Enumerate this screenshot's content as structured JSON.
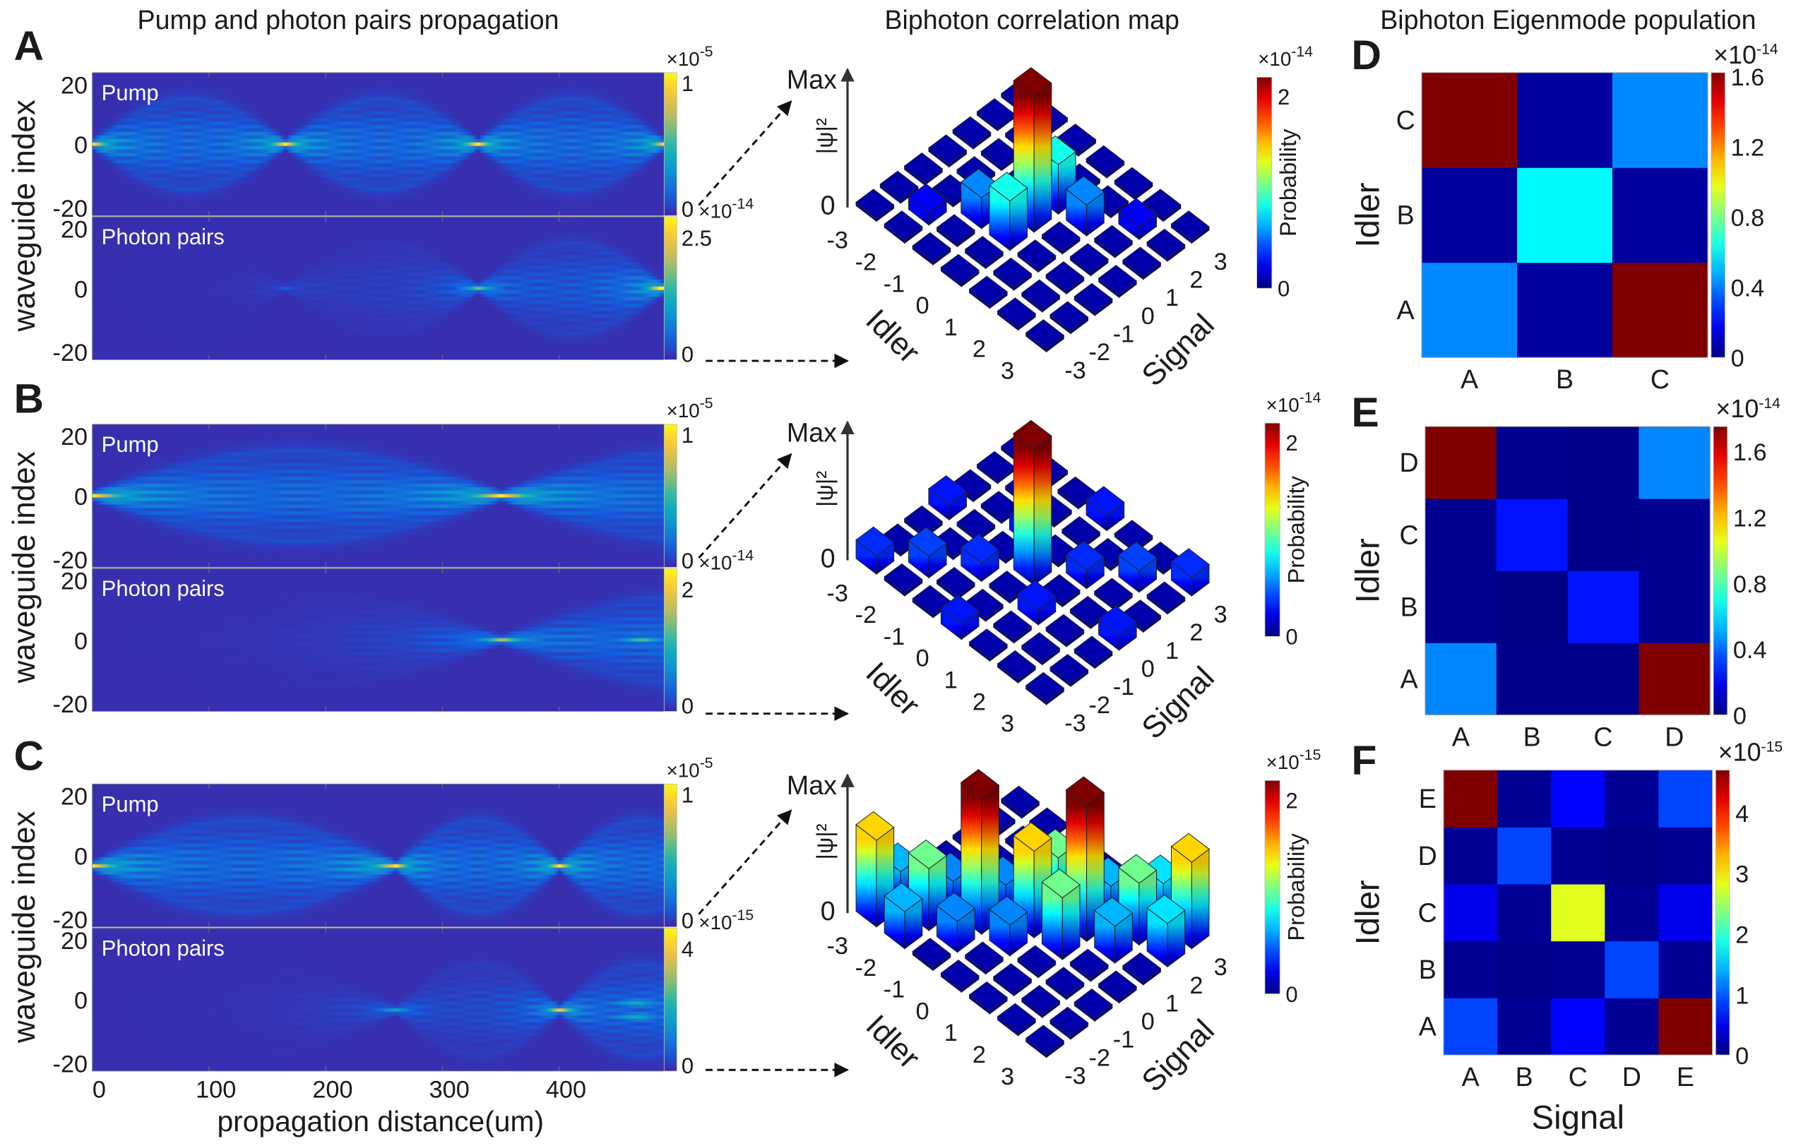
{
  "column_titles": {
    "propagation": "Pump and photon pairs propagation",
    "correlation": "Biphoton correlation map",
    "eigenmode": "Biphoton Eigenmode population"
  },
  "panel_letters": [
    "A",
    "B",
    "C",
    "D",
    "E",
    "F"
  ],
  "colors": {
    "background": "#ffffff",
    "text": "#1a1a1a",
    "arrow": "#111111"
  },
  "chart_data": [
    {
      "type": "heatmap",
      "panel": "A",
      "colormap": "parula",
      "ylabel": "waveguide index",
      "ylim": [
        -20,
        20
      ],
      "yticks": [
        "20",
        "0",
        "-20"
      ],
      "xlim": [
        0,
        490
      ],
      "subplots": [
        {
          "label": "Pump",
          "colorbar": {
            "mult": "×10",
            "exp": "-5",
            "range": [
              0,
              1
            ],
            "ticks": [
              "1",
              "0"
            ]
          },
          "bright_spots": [
            {
              "distance_um": 0,
              "waveguide": 0
            },
            {
              "distance_um": 165,
              "waveguide": 0
            },
            {
              "distance_um": 330,
              "waveguide": 0
            },
            {
              "distance_um": 490,
              "waveguide": 0
            }
          ]
        },
        {
          "label": "Photon pairs",
          "colorbar": {
            "mult": "×10",
            "exp": "-14",
            "range": [
              0,
              2.5
            ],
            "ticks": [
              "2.5",
              "0"
            ]
          },
          "bright_spots": [
            {
              "distance_um": 330,
              "waveguide": 0
            },
            {
              "distance_um": 490,
              "waveguide": 0
            }
          ]
        }
      ]
    },
    {
      "type": "heatmap",
      "panel": "B",
      "colormap": "parula",
      "ylabel": "waveguide index",
      "ylim": [
        -20,
        20
      ],
      "yticks": [
        "20",
        "0",
        "-20"
      ],
      "xlim": [
        0,
        490
      ],
      "subplots": [
        {
          "label": "Pump",
          "colorbar": {
            "mult": "×10",
            "exp": "-5",
            "range": [
              0,
              1
            ],
            "ticks": [
              "1",
              "0"
            ]
          },
          "bright_spots": [
            {
              "distance_um": 0,
              "waveguide": 0
            },
            {
              "distance_um": 350,
              "waveguide": 0
            }
          ]
        },
        {
          "label": "Photon pairs",
          "colorbar": {
            "mult": "×10",
            "exp": "-14",
            "range": [
              0,
              2
            ],
            "ticks": [
              "2",
              "0"
            ]
          },
          "bright_spots": [
            {
              "distance_um": 350,
              "waveguide": 0
            },
            {
              "distance_um": 470,
              "waveguide": 0
            }
          ]
        }
      ]
    },
    {
      "type": "heatmap",
      "panel": "C",
      "colormap": "parula",
      "ylabel": "waveguide index",
      "ylim": [
        -20,
        20
      ],
      "yticks": [
        "20",
        "0",
        "-20"
      ],
      "xlabel": "propagation distance(um)",
      "xlim": [
        0,
        490
      ],
      "xticks": [
        "0",
        "100",
        "200",
        "300",
        "400"
      ],
      "xtick_values": [
        0,
        100,
        200,
        300,
        400
      ],
      "subplots": [
        {
          "label": "Pump",
          "colorbar": {
            "mult": "×10",
            "exp": "-5",
            "range": [
              0,
              1
            ],
            "ticks": [
              "1",
              "0"
            ]
          },
          "bright_spots": [
            {
              "distance_um": 0,
              "waveguide": -3
            },
            {
              "distance_um": 260,
              "waveguide": -3
            },
            {
              "distance_um": 400,
              "waveguide": -3
            }
          ]
        },
        {
          "label": "Photon pairs",
          "colorbar": {
            "mult": "×10",
            "exp": "-15",
            "range": [
              0,
              4
            ],
            "ticks": [
              "4",
              "0"
            ]
          },
          "bright_spots": [
            {
              "distance_um": 260,
              "waveguide": -3
            },
            {
              "distance_um": 400,
              "waveguide": -3
            },
            {
              "distance_um": 465,
              "waveguide": -1
            },
            {
              "distance_um": 465,
              "waveguide": -5
            }
          ]
        }
      ]
    },
    {
      "type": "bar3d",
      "panel": "A",
      "colormap": "jet",
      "ztop": "Max",
      "zbottom": "0",
      "zlabel": "|ψ|²",
      "xlabel": "Idler",
      "ylabel": "Signal",
      "idler_ticks": [
        "-3",
        "-2",
        "-1",
        "0",
        "1",
        "2",
        "3"
      ],
      "signal_ticks": [
        "-3",
        "-2",
        "-1",
        "0",
        "1",
        "2",
        "3"
      ],
      "colorbar": {
        "label": "Probability",
        "mult": "×10",
        "exp": "-14",
        "range": [
          0,
          2.2
        ],
        "ticks": [
          "2",
          "0"
        ],
        "tick_values": [
          2,
          0
        ]
      },
      "values": [
        [
          0.03,
          0.03,
          0.03,
          0.03,
          0.03,
          0.03,
          0.03
        ],
        [
          0.03,
          0.2,
          0.03,
          0.03,
          0.03,
          0.03,
          0.03
        ],
        [
          0.03,
          0.03,
          0.5,
          0.03,
          0.03,
          0.03,
          0.03
        ],
        [
          0.03,
          0.03,
          0.8,
          2.2,
          0.8,
          0.03,
          0.03
        ],
        [
          0.03,
          0.03,
          0.03,
          0.03,
          0.5,
          0.03,
          0.03
        ],
        [
          0.03,
          0.03,
          0.03,
          0.03,
          0.03,
          0.2,
          0.03
        ],
        [
          0.03,
          0.03,
          0.03,
          0.03,
          0.03,
          0.03,
          0.03
        ]
      ]
    },
    {
      "type": "bar3d",
      "panel": "B",
      "colormap": "jet",
      "ztop": "Max",
      "zbottom": "0",
      "zlabel": "|ψ|²",
      "xlabel": "Idler",
      "ylabel": "Signal",
      "idler_ticks": [
        "-3",
        "-2",
        "-1",
        "0",
        "1",
        "2",
        "3"
      ],
      "signal_ticks": [
        "-3",
        "-2",
        "-1",
        "0",
        "1",
        "2",
        "3"
      ],
      "colorbar": {
        "label": "Probability",
        "mult": "×10",
        "exp": "-14",
        "range": [
          0,
          2.2
        ],
        "ticks": [
          "2",
          "0"
        ],
        "tick_values": [
          2,
          0
        ]
      },
      "values": [
        [
          0.3,
          0.03,
          0.03,
          0.25,
          0.03,
          0.03,
          0.03
        ],
        [
          0.03,
          0.35,
          0.03,
          0.03,
          0.03,
          0.03,
          0.03
        ],
        [
          0.03,
          0.03,
          0.3,
          0.03,
          0.25,
          0.03,
          0.03
        ],
        [
          0.25,
          0.03,
          0.03,
          2.2,
          0.03,
          0.03,
          0.25
        ],
        [
          0.03,
          0.03,
          0.25,
          0.03,
          0.3,
          0.03,
          0.03
        ],
        [
          0.03,
          0.03,
          0.03,
          0.03,
          0.03,
          0.35,
          0.03
        ],
        [
          0.03,
          0.03,
          0.03,
          0.25,
          0.03,
          0.03,
          0.3
        ]
      ]
    },
    {
      "type": "bar3d",
      "panel": "C",
      "colormap": "jet",
      "ztop": "Max",
      "zbottom": "0",
      "zlabel": "|ψ|²",
      "xlabel": "Idler",
      "ylabel": "Signal",
      "idler_ticks": [
        "-3",
        "-2",
        "-1",
        "0",
        "1",
        "2",
        "3"
      ],
      "signal_ticks": [
        "-3",
        "-2",
        "-1",
        "0",
        "1",
        "2",
        "3"
      ],
      "colorbar": {
        "label": "Probability",
        "mult": "×10",
        "exp": "-15",
        "range": [
          0,
          2.2
        ],
        "ticks": [
          "2",
          "0"
        ],
        "tick_values": [
          2,
          0
        ]
      },
      "values": [
        [
          1.4,
          0.6,
          0.03,
          0.03,
          0.03,
          0.03,
          0.03
        ],
        [
          0.6,
          1.0,
          0.5,
          0.03,
          0.03,
          0.03,
          0.03
        ],
        [
          0.03,
          0.5,
          2.2,
          0.5,
          0.03,
          0.03,
          0.03
        ],
        [
          0.03,
          0.03,
          0.5,
          1.4,
          1.0,
          0.03,
          0.03
        ],
        [
          0.03,
          0.03,
          0.03,
          1.0,
          2.2,
          0.6,
          0.03
        ],
        [
          0.03,
          0.03,
          0.03,
          0.03,
          0.6,
          1.0,
          0.7
        ],
        [
          0.03,
          0.03,
          0.03,
          0.03,
          0.03,
          0.7,
          1.4
        ]
      ]
    },
    {
      "type": "heatmap",
      "panel": "D",
      "colormap": "jet",
      "ylabel": "Idler",
      "categories": [
        "A",
        "B",
        "C"
      ],
      "colorbar": {
        "mult": "×10",
        "exp": "-14",
        "range": [
          0,
          1.62
        ],
        "ticks": [
          "1.6",
          "1.2",
          "0.8",
          "0.4",
          "0"
        ],
        "tick_values": [
          1.6,
          1.2,
          0.8,
          0.4,
          0
        ]
      },
      "values_by_idler": [
        [
          0.42,
          0.05,
          1.62
        ],
        [
          0.05,
          0.6,
          0.05
        ],
        [
          1.62,
          0.05,
          0.42
        ]
      ]
    },
    {
      "type": "heatmap",
      "panel": "E",
      "colormap": "jet",
      "ylabel": "Idler",
      "categories": [
        "A",
        "B",
        "C",
        "D"
      ],
      "colorbar": {
        "mult": "×10",
        "exp": "-14",
        "range": [
          0,
          1.75
        ],
        "ticks": [
          "1.6",
          "1.2",
          "0.8",
          "0.4",
          "0"
        ],
        "tick_values": [
          1.6,
          1.2,
          0.8,
          0.4,
          0
        ]
      },
      "values_by_idler": [
        [
          0.45,
          0.02,
          0.02,
          1.75
        ],
        [
          0.03,
          0.01,
          0.25,
          0.03
        ],
        [
          0.03,
          0.25,
          0.02,
          0.03
        ],
        [
          1.75,
          0.03,
          0.02,
          0.45
        ]
      ]
    },
    {
      "type": "heatmap",
      "panel": "F",
      "colormap": "jet",
      "ylabel": "Idler",
      "xlabel": "Signal",
      "categories": [
        "A",
        "B",
        "C",
        "D",
        "E"
      ],
      "colorbar": {
        "mult": "×10",
        "exp": "-15",
        "range": [
          0,
          4.7
        ],
        "ticks": [
          "4",
          "3",
          "2",
          "1",
          "0"
        ],
        "tick_values": [
          4,
          3,
          2,
          1,
          0
        ]
      },
      "values_by_idler": [
        [
          0.9,
          0.1,
          0.6,
          0.1,
          4.7
        ],
        [
          0.1,
          0.05,
          0.1,
          0.9,
          0.1
        ],
        [
          0.5,
          0.1,
          2.8,
          0.1,
          0.5
        ],
        [
          0.1,
          0.9,
          0.1,
          0.05,
          0.1
        ],
        [
          4.7,
          0.1,
          0.6,
          0.1,
          0.9
        ]
      ]
    }
  ]
}
